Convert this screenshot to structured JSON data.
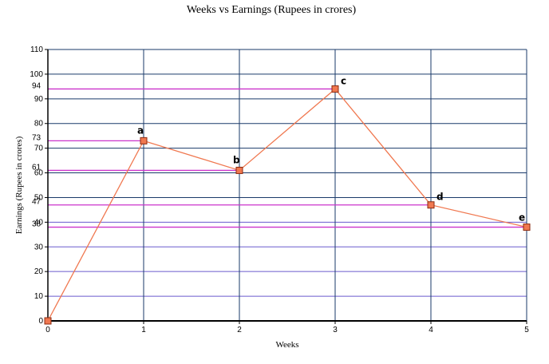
{
  "chart_data": {
    "type": "line",
    "title": "Weeks vs Earnings (Rupees in crores)",
    "xlabel": "Weeks",
    "ylabel": "Earnings (Rupees in crores)",
    "xlim": [
      0,
      5
    ],
    "ylim": [
      0,
      110
    ],
    "x_ticks": [
      "0",
      "1",
      "2",
      "3",
      "4",
      "5"
    ],
    "y_ticks": [
      "0",
      "10",
      "20",
      "30",
      "40",
      "50",
      "60",
      "70",
      "80",
      "90",
      "100",
      "110"
    ],
    "grid": true,
    "points": [
      {
        "x": 0,
        "y": 0,
        "label": ""
      },
      {
        "x": 1,
        "y": 73,
        "label": "a"
      },
      {
        "x": 2,
        "y": 61,
        "label": "b"
      },
      {
        "x": 3,
        "y": 94,
        "label": "c"
      },
      {
        "x": 4,
        "y": 47,
        "label": "d"
      },
      {
        "x": 5,
        "y": 38,
        "label": "e"
      }
    ],
    "reference_lines": [
      {
        "y": 94,
        "label": "94"
      },
      {
        "y": 73,
        "label": "73"
      },
      {
        "y": 61,
        "label": "61"
      },
      {
        "y": 47,
        "label": "47"
      },
      {
        "y": 38,
        "label": "38"
      }
    ],
    "colors": {
      "line": "#f07850",
      "marker_fill": "#f07850",
      "marker_stroke": "#8b2a10",
      "reference": "#cc33cc",
      "grid_major": "#1a3a6a",
      "grid_minor": "#6a5acd",
      "axis": "#000000"
    }
  }
}
